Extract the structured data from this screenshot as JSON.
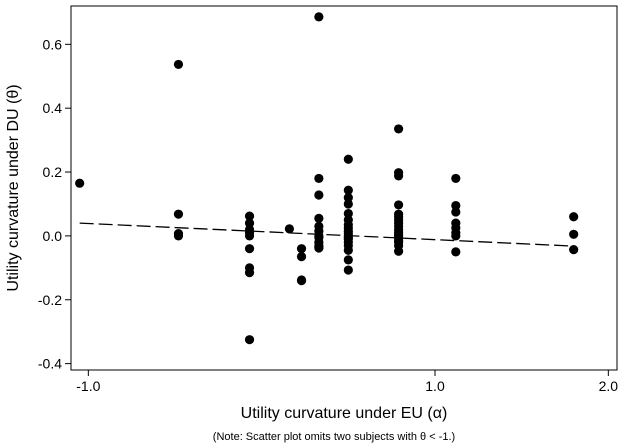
{
  "chart_data": {
    "type": "scatter",
    "xlabel": "Utility curvature under EU (α)",
    "ylabel": "Utility curvature under DU (θ)",
    "note": "(Note: Scatter plot omits two subjects with θ < -1.)",
    "xlim": [
      -1.1,
      2.05
    ],
    "ylim": [
      -0.42,
      0.72
    ],
    "xticks": [
      -1.0,
      1.0,
      2.0
    ],
    "xtick_labels": [
      "-1.0",
      "1.0",
      "2.0"
    ],
    "yticks": [
      -0.4,
      -0.2,
      0.0,
      0.2,
      0.4,
      0.6
    ],
    "ytick_labels": [
      "-0.4",
      "-0.2",
      "0.0",
      "0.2",
      "0.4",
      "0.6"
    ],
    "grid": false,
    "colors": {
      "points": "#000000",
      "fit_line": "#000000"
    },
    "series": [
      {
        "kind": "points",
        "x": [
          -1.05,
          -0.48,
          -0.48,
          -0.48,
          -0.48,
          -0.07,
          -0.07,
          -0.07,
          -0.07,
          -0.07,
          -0.07,
          -0.07,
          -0.07,
          -0.07,
          0.16,
          0.23,
          0.23,
          0.23,
          0.23,
          0.33,
          0.33,
          0.33,
          0.33,
          0.33,
          0.33,
          0.33,
          0.33,
          0.33,
          0.33,
          0.33,
          0.33,
          0.5,
          0.5,
          0.5,
          0.5,
          0.5,
          0.5,
          0.5,
          0.5,
          0.5,
          0.5,
          0.5,
          0.5,
          0.5,
          0.5,
          0.5,
          0.5,
          0.5,
          0.5,
          0.79,
          0.79,
          0.79,
          0.79,
          0.79,
          0.79,
          0.79,
          0.79,
          0.79,
          0.79,
          0.79,
          0.79,
          0.79,
          0.79,
          0.79,
          0.79,
          0.79,
          0.79,
          1.12,
          1.12,
          1.12,
          1.12,
          1.12,
          1.12,
          1.12,
          1.12,
          1.8,
          1.8,
          1.8
        ],
        "y": [
          0.165,
          0.537,
          0.068,
          0.007,
          0.0,
          0.062,
          0.04,
          0.02,
          0.01,
          0.0,
          -0.04,
          -0.1,
          -0.115,
          -0.325,
          0.022,
          -0.04,
          -0.065,
          -0.138,
          -0.14,
          0.686,
          0.18,
          0.128,
          0.055,
          0.03,
          0.015,
          0.0,
          -0.005,
          -0.02,
          -0.03,
          -0.035,
          -0.038,
          0.24,
          0.143,
          0.12,
          0.1,
          0.07,
          0.05,
          0.035,
          0.025,
          0.015,
          0.008,
          0.0,
          -0.005,
          -0.01,
          -0.02,
          -0.03,
          -0.045,
          -0.075,
          -0.107,
          0.335,
          0.198,
          0.188,
          0.097,
          0.068,
          0.06,
          0.05,
          0.04,
          0.03,
          0.02,
          0.012,
          0.005,
          0.0,
          -0.005,
          -0.015,
          -0.02,
          -0.03,
          -0.048,
          0.18,
          0.095,
          0.075,
          0.04,
          0.025,
          0.01,
          0.0,
          -0.05,
          0.06,
          0.005,
          -0.043
        ]
      },
      {
        "kind": "fit_line",
        "x": [
          -1.05,
          1.8
        ],
        "y": [
          0.04,
          -0.032
        ]
      }
    ]
  }
}
